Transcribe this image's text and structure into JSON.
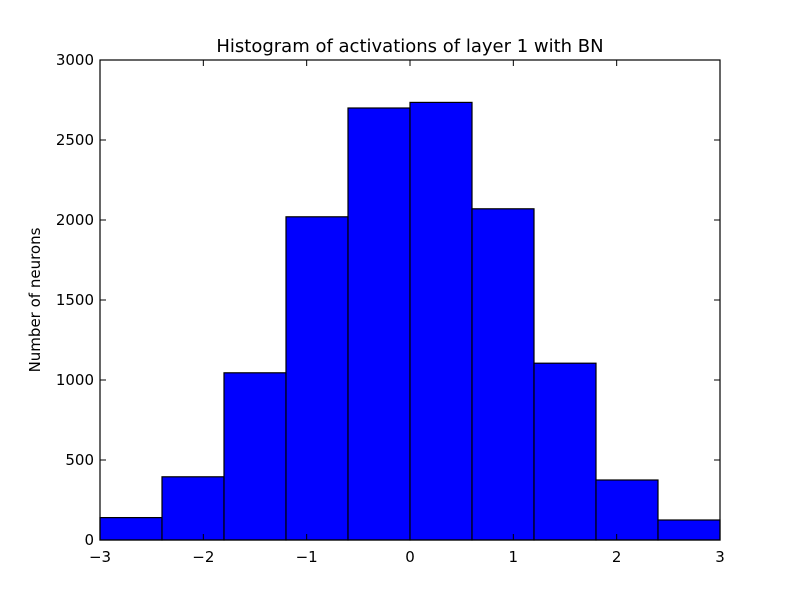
{
  "chart_data": {
    "type": "bar",
    "title": "Histogram of activations of layer 1  with BN",
    "xlabel": "",
    "ylabel": "Number of neurons",
    "xlim": [
      -3,
      3
    ],
    "ylim": [
      0,
      3000
    ],
    "x_ticks": [
      -3,
      -2,
      -1,
      0,
      1,
      2,
      3
    ],
    "x_tick_labels": [
      "−3",
      "−2",
      "−1",
      "0",
      "1",
      "2",
      "3"
    ],
    "y_ticks": [
      0,
      500,
      1000,
      1500,
      2000,
      2500,
      3000
    ],
    "y_tick_labels": [
      "0",
      "500",
      "1000",
      "1500",
      "2000",
      "2500",
      "3000"
    ],
    "bin_edges": [
      -3,
      -2.4,
      -1.8,
      -1.2,
      -0.6,
      0,
      0.6,
      1.2,
      1.8,
      2.4,
      3
    ],
    "values": [
      140,
      395,
      1045,
      2020,
      2700,
      2735,
      2070,
      1105,
      375,
      125
    ],
    "bar_color": "#0000ff",
    "edge_color": "#000000",
    "grid": false
  }
}
